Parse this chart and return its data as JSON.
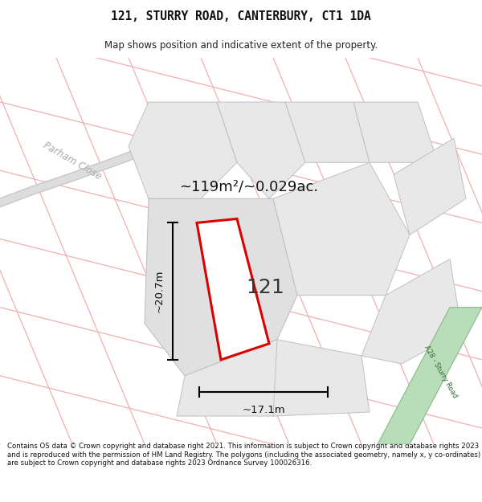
{
  "title": "121, STURRY ROAD, CANTERBURY, CT1 1DA",
  "subtitle": "Map shows position and indicative extent of the property.",
  "footer": "Contains OS data © Crown copyright and database right 2021. This information is subject to Crown copyright and database rights 2023 and is reproduced with the permission of HM Land Registry. The polygons (including the associated geometry, namely x, y co-ordinates) are subject to Crown copyright and database rights 2023 Ordnance Survey 100026316.",
  "area_text": "~119m²/~0.029ac.",
  "property_number": "121",
  "dim_width": "~17.1m",
  "dim_height": "~20.7m",
  "road_label": "A28 - Sturry Road",
  "street_label": "Parham Close",
  "map_bg": "#ffffff",
  "parcel_fill": "#e8e8e8",
  "parcel_edge": "#c0c0c0",
  "red_color": "#dd0000",
  "green_fill": "#b8ddb8",
  "green_edge": "#88bb88",
  "grid_line_color": "#f0b0b0",
  "road_color": "#aaaaaa",
  "text_color": "#222222",
  "label_color": "#999999"
}
